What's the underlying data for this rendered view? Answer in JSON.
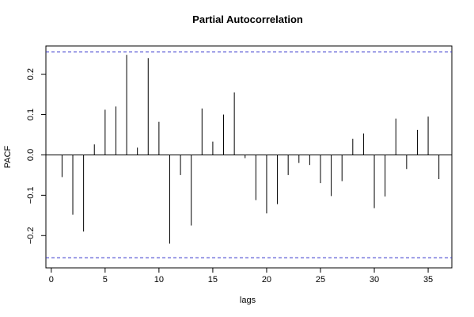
{
  "chart_data": {
    "type": "bar",
    "title": "Partial Autocorrelation",
    "xlabel": "lags",
    "ylabel": "PACF",
    "xlim": [
      -0.5,
      37.2
    ],
    "ylim": [
      -0.28,
      0.27
    ],
    "x_ticks": [
      0,
      5,
      10,
      15,
      20,
      25,
      30,
      35
    ],
    "x_tick_labels": [
      "0",
      "5",
      "10",
      "15",
      "20",
      "25",
      "30",
      "35"
    ],
    "y_ticks": [
      -0.2,
      -0.1,
      0.0,
      0.1,
      0.2
    ],
    "y_tick_labels": [
      "−0.2",
      "−0.1",
      "0.0",
      "0.1",
      "0.2"
    ],
    "confidence_bounds": [
      0.255,
      -0.255
    ],
    "bound_color": "#3333cc",
    "grid": false,
    "x": [
      1,
      2,
      3,
      4,
      5,
      6,
      7,
      8,
      9,
      10,
      11,
      12,
      13,
      14,
      15,
      16,
      17,
      18,
      19,
      20,
      21,
      22,
      23,
      24,
      25,
      26,
      27,
      28,
      29,
      30,
      31,
      32,
      33,
      34,
      35,
      36
    ],
    "values": [
      -0.055,
      -0.148,
      -0.19,
      0.026,
      0.112,
      0.12,
      0.248,
      0.018,
      0.24,
      0.082,
      -0.22,
      -0.05,
      -0.175,
      0.115,
      0.033,
      0.1,
      0.155,
      -0.008,
      -0.112,
      -0.145,
      -0.122,
      -0.05,
      -0.02,
      -0.025,
      -0.07,
      -0.102,
      -0.065,
      0.04,
      0.053,
      -0.132,
      -0.103,
      0.09,
      -0.035,
      0.062,
      0.095,
      -0.06
    ]
  }
}
